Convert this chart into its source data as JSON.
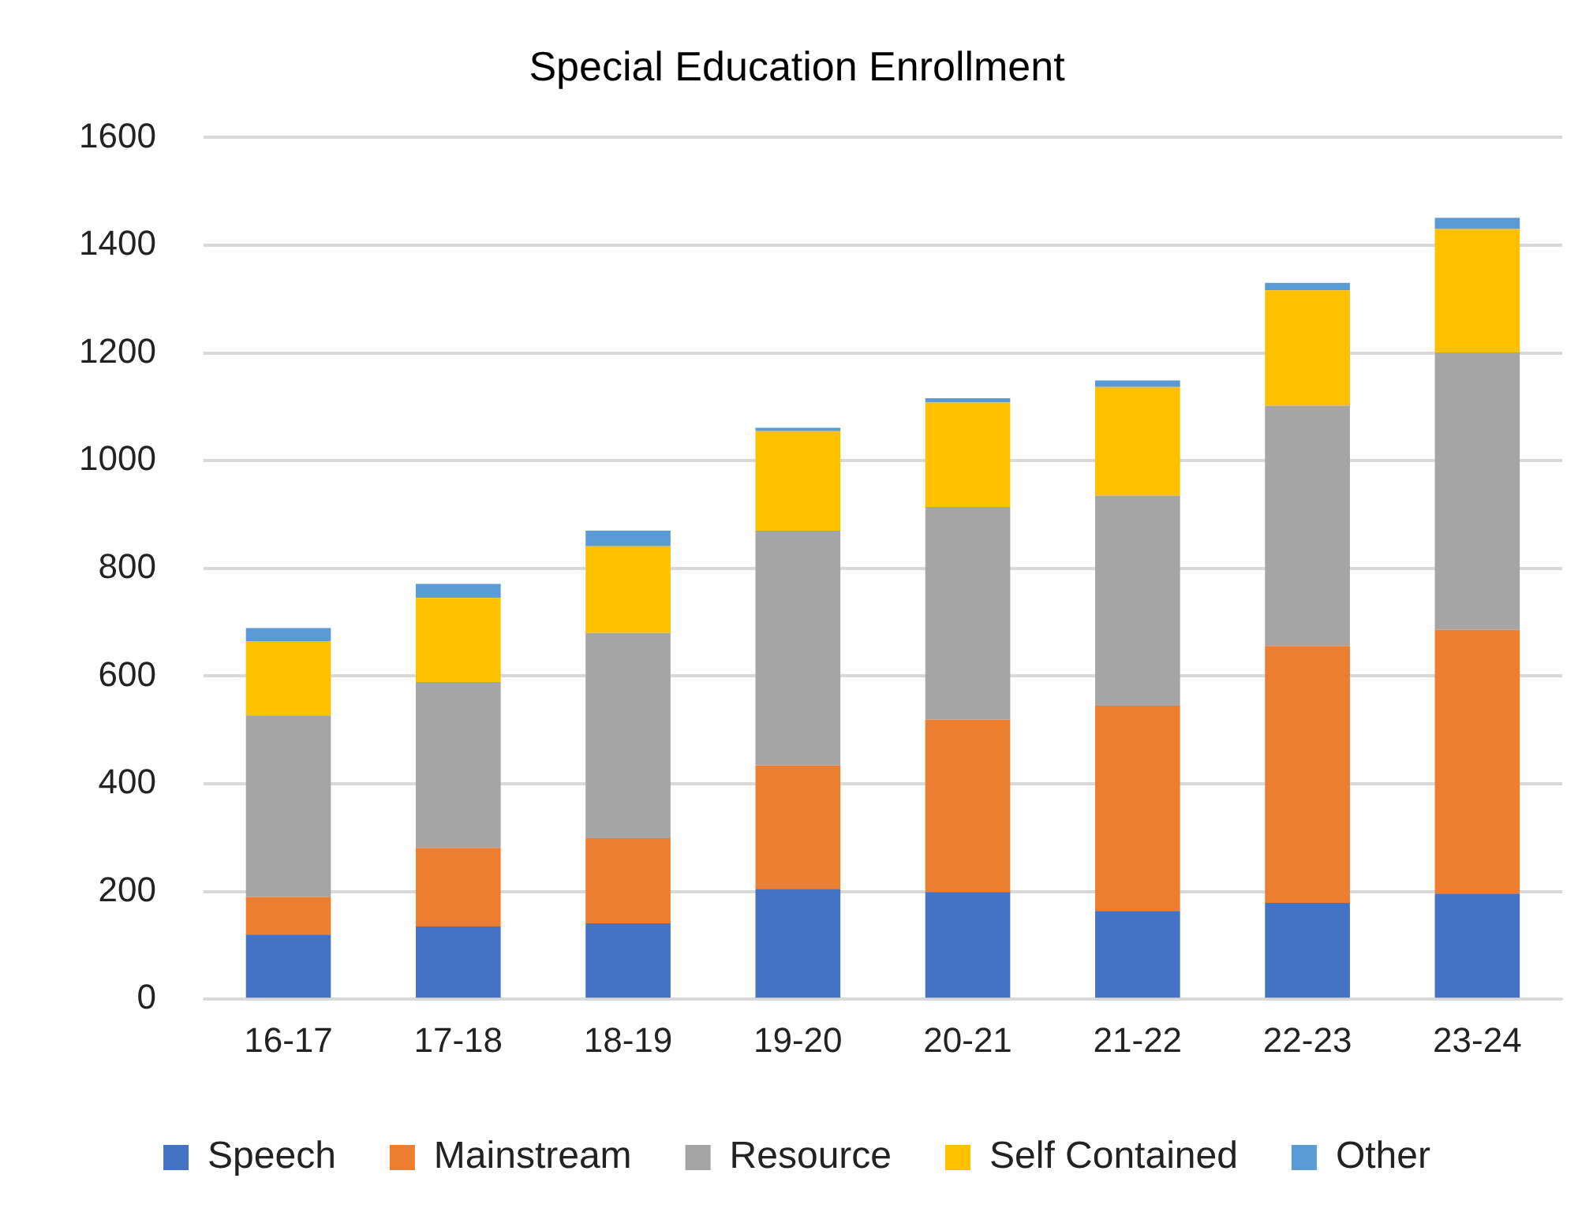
{
  "chart_data": {
    "type": "bar",
    "title": "Special Education Enrollment",
    "stacked": true,
    "categories": [
      "16-17",
      "17-18",
      "18-19",
      "19-20",
      "20-21",
      "21-22",
      "22-23",
      "23-24"
    ],
    "series": [
      {
        "name": "Speech",
        "color": "#4472c4",
        "values": [
          120,
          135,
          141,
          205,
          199,
          164,
          179,
          196
        ]
      },
      {
        "name": "Mainstream",
        "color": "#ed7d31",
        "values": [
          70,
          146,
          158,
          229,
          320,
          381,
          477,
          490
        ]
      },
      {
        "name": "Resource",
        "color": "#a5a5a5",
        "values": [
          337,
          308,
          381,
          436,
          395,
          390,
          446,
          515
        ]
      },
      {
        "name": "Self Contained",
        "color": "#ffc000",
        "values": [
          138,
          156,
          161,
          185,
          194,
          202,
          214,
          229
        ]
      },
      {
        "name": "Other",
        "color": "#5b9bd5",
        "values": [
          24,
          26,
          29,
          6,
          8,
          12,
          14,
          21
        ]
      }
    ],
    "ylim": [
      0,
      1600
    ],
    "yticks": [
      0,
      200,
      400,
      600,
      800,
      1000,
      1200,
      1400,
      1600
    ],
    "grid": "y",
    "legend": "bottom"
  }
}
